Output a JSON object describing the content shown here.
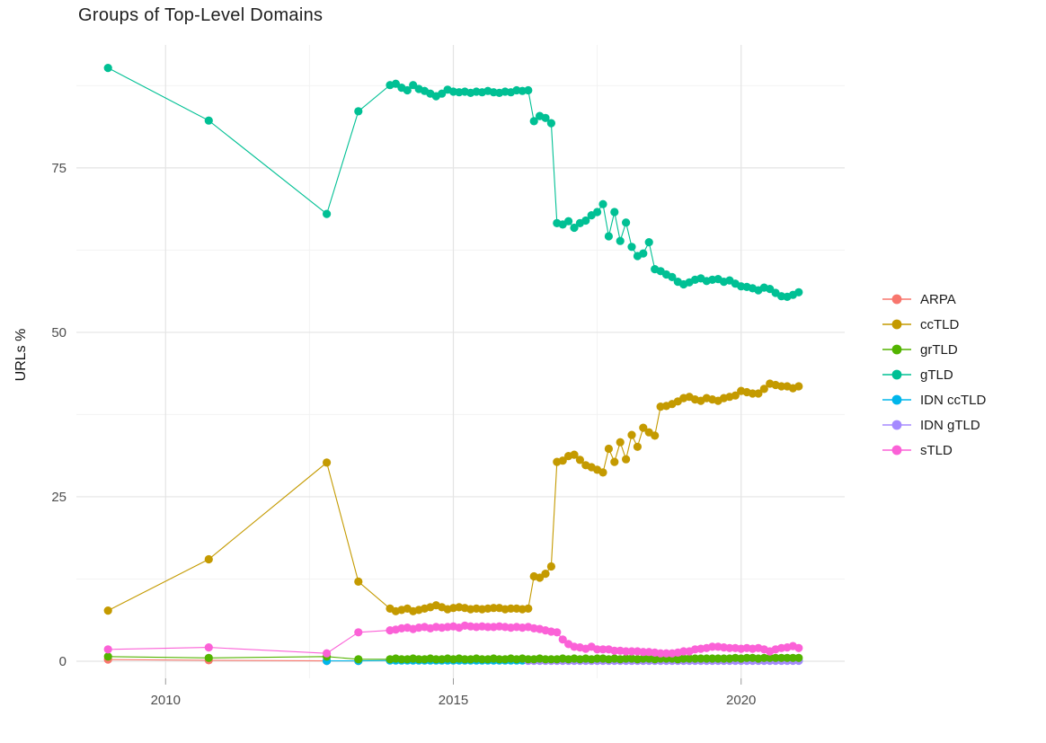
{
  "title": "Groups of Top-Level Domains",
  "chart_data": {
    "type": "line",
    "title": "Groups of Top-Level Domains",
    "xlabel": "",
    "ylabel": "URLs %",
    "xlim": [
      2008.45,
      2021.8
    ],
    "ylim": [
      -2.6,
      93.7
    ],
    "grid": true,
    "legend_position": "right",
    "x_ticks": [
      {
        "value": 2010,
        "label": "2010"
      },
      {
        "value": 2015,
        "label": "2015"
      },
      {
        "value": 2020,
        "label": "2020"
      }
    ],
    "y_ticks": [
      {
        "value": 0,
        "label": "0"
      },
      {
        "value": 25,
        "label": "25"
      },
      {
        "value": 50,
        "label": "50"
      },
      {
        "value": 75,
        "label": "75"
      }
    ],
    "x_minor": [
      2012.5,
      2017.5
    ],
    "y_minor": [
      12.5,
      37.5,
      62.5,
      87.5
    ],
    "series": [
      {
        "name": "ARPA",
        "color": "#F8766D",
        "z": 1,
        "points": [
          [
            2009.0,
            0.25
          ],
          [
            2010.75,
            0.15
          ],
          [
            2012.8,
            0.05
          ],
          [
            2013.35,
            0.05
          ]
        ]
      },
      {
        "name": "ccTLD",
        "color": "#C49A00",
        "z": 5,
        "points": [
          [
            2009.0,
            7.7
          ],
          [
            2010.75,
            15.5
          ],
          [
            2012.8,
            30.2
          ],
          [
            2013.35,
            12.1
          ]
        ],
        "dense": {
          "start": 2013.9,
          "step": 0.1,
          "values": [
            8.0,
            7.6,
            7.8,
            8.0,
            7.6,
            7.8,
            8.0,
            8.2,
            8.5,
            8.2,
            7.9,
            8.1,
            8.2,
            8.1,
            7.9,
            8.0,
            7.9,
            8.0,
            8.1,
            8.1,
            7.9,
            8.0,
            8.0,
            7.9,
            8.0,
            12.9,
            12.7,
            13.3,
            14.4,
            30.3,
            30.5,
            31.2,
            31.4,
            30.6,
            29.8,
            29.5,
            29.1,
            28.7,
            32.3,
            30.3,
            33.3,
            30.7,
            34.4,
            32.6,
            35.5,
            34.8,
            34.3,
            38.7,
            38.8,
            39.1,
            39.5,
            40.0,
            40.2,
            39.8,
            39.6,
            40.0,
            39.8,
            39.6,
            40.0,
            40.2,
            40.4,
            41.1,
            40.9,
            40.7,
            40.7,
            41.4,
            42.2,
            42.0,
            41.8,
            41.8,
            41.5,
            41.8
          ]
        }
      },
      {
        "name": "grTLD",
        "color": "#53B400",
        "z": 4,
        "points": [
          [
            2009.0,
            0.7
          ],
          [
            2010.75,
            0.5
          ],
          [
            2012.8,
            0.7
          ],
          [
            2013.35,
            0.3
          ]
        ],
        "dense": {
          "start": 2013.9,
          "step": 0.1,
          "values": [
            0.3,
            0.4,
            0.3,
            0.3,
            0.4,
            0.3,
            0.3,
            0.4,
            0.3,
            0.3,
            0.4,
            0.3,
            0.4,
            0.3,
            0.3,
            0.4,
            0.3,
            0.3,
            0.4,
            0.3,
            0.3,
            0.4,
            0.3,
            0.4,
            0.3,
            0.3,
            0.4,
            0.3,
            0.3,
            0.3,
            0.4,
            0.3,
            0.4,
            0.3,
            0.4,
            0.3,
            0.4,
            0.4,
            0.3,
            0.4,
            0.3,
            0.4,
            0.4,
            0.3,
            0.4,
            0.4,
            0.3,
            0.4,
            0.4,
            0.4,
            0.3,
            0.4,
            0.4,
            0.4,
            0.4,
            0.4,
            0.4,
            0.4,
            0.4,
            0.4,
            0.5,
            0.4,
            0.5,
            0.5,
            0.4,
            0.5,
            0.5,
            0.5,
            0.5,
            0.5,
            0.5,
            0.5
          ]
        }
      },
      {
        "name": "gTLD",
        "color": "#00C094",
        "z": 7,
        "points": [
          [
            2009.0,
            90.2
          ],
          [
            2010.75,
            82.2
          ],
          [
            2012.8,
            68.0
          ],
          [
            2013.35,
            83.6
          ]
        ],
        "dense": {
          "start": 2013.9,
          "step": 0.1,
          "values": [
            87.6,
            87.8,
            87.2,
            86.8,
            87.6,
            87.0,
            86.7,
            86.3,
            85.9,
            86.3,
            86.9,
            86.6,
            86.5,
            86.6,
            86.4,
            86.6,
            86.5,
            86.7,
            86.5,
            86.4,
            86.6,
            86.5,
            86.8,
            86.7,
            86.8,
            82.1,
            82.9,
            82.6,
            81.8,
            66.6,
            66.4,
            66.9,
            65.9,
            66.6,
            67.0,
            67.8,
            68.3,
            69.5,
            64.6,
            68.3,
            63.9,
            66.7,
            63.0,
            61.6,
            62.0,
            63.7,
            59.6,
            59.3,
            58.8,
            58.4,
            57.7,
            57.3,
            57.6,
            58.0,
            58.2,
            57.8,
            58.0,
            58.1,
            57.7,
            57.9,
            57.4,
            57.0,
            56.9,
            56.7,
            56.4,
            56.8,
            56.6,
            56.0,
            55.5,
            55.4,
            55.7,
            56.1
          ]
        }
      },
      {
        "name": "IDN ccTLD",
        "color": "#00B6EB",
        "z": 2,
        "points": [
          [
            2012.8,
            0.05
          ],
          [
            2013.35,
            0.05
          ]
        ],
        "dense": {
          "start": 2013.9,
          "step": 0.1,
          "count": 72,
          "value": 0.1
        }
      },
      {
        "name": "IDN gTLD",
        "color": "#A58AFF",
        "z": 3,
        "points": [],
        "dense": {
          "start": 2016.3,
          "step": 0.1,
          "count": 48,
          "value": 0.07
        }
      },
      {
        "name": "sTLD",
        "color": "#FB61D7",
        "z": 6,
        "points": [
          [
            2009.0,
            1.8
          ],
          [
            2010.75,
            2.1
          ],
          [
            2012.8,
            1.2
          ],
          [
            2013.35,
            4.4
          ]
        ],
        "dense": {
          "start": 2013.9,
          "step": 0.1,
          "values": [
            4.7,
            4.8,
            5.0,
            5.1,
            4.9,
            5.1,
            5.2,
            5.0,
            5.2,
            5.1,
            5.2,
            5.3,
            5.1,
            5.4,
            5.3,
            5.2,
            5.3,
            5.2,
            5.2,
            5.3,
            5.2,
            5.1,
            5.2,
            5.1,
            5.2,
            5.0,
            4.9,
            4.7,
            4.5,
            4.4,
            3.3,
            2.6,
            2.2,
            2.1,
            1.9,
            2.2,
            1.8,
            1.8,
            1.8,
            1.6,
            1.6,
            1.5,
            1.5,
            1.5,
            1.4,
            1.4,
            1.3,
            1.2,
            1.2,
            1.2,
            1.3,
            1.5,
            1.5,
            1.8,
            1.9,
            2.0,
            2.2,
            2.2,
            2.1,
            2.0,
            2.0,
            1.9,
            2.0,
            1.9,
            2.0,
            1.8,
            1.5,
            1.8,
            2.0,
            2.1,
            2.3,
            2.0
          ]
        }
      }
    ],
    "style": {
      "grid_major_color": "#E4E4E4",
      "grid_minor_color": "#F2F2F2",
      "axis_text_color": "#4d4d4d",
      "tick_mark_color": "#999999",
      "background": "#ffffff"
    }
  }
}
